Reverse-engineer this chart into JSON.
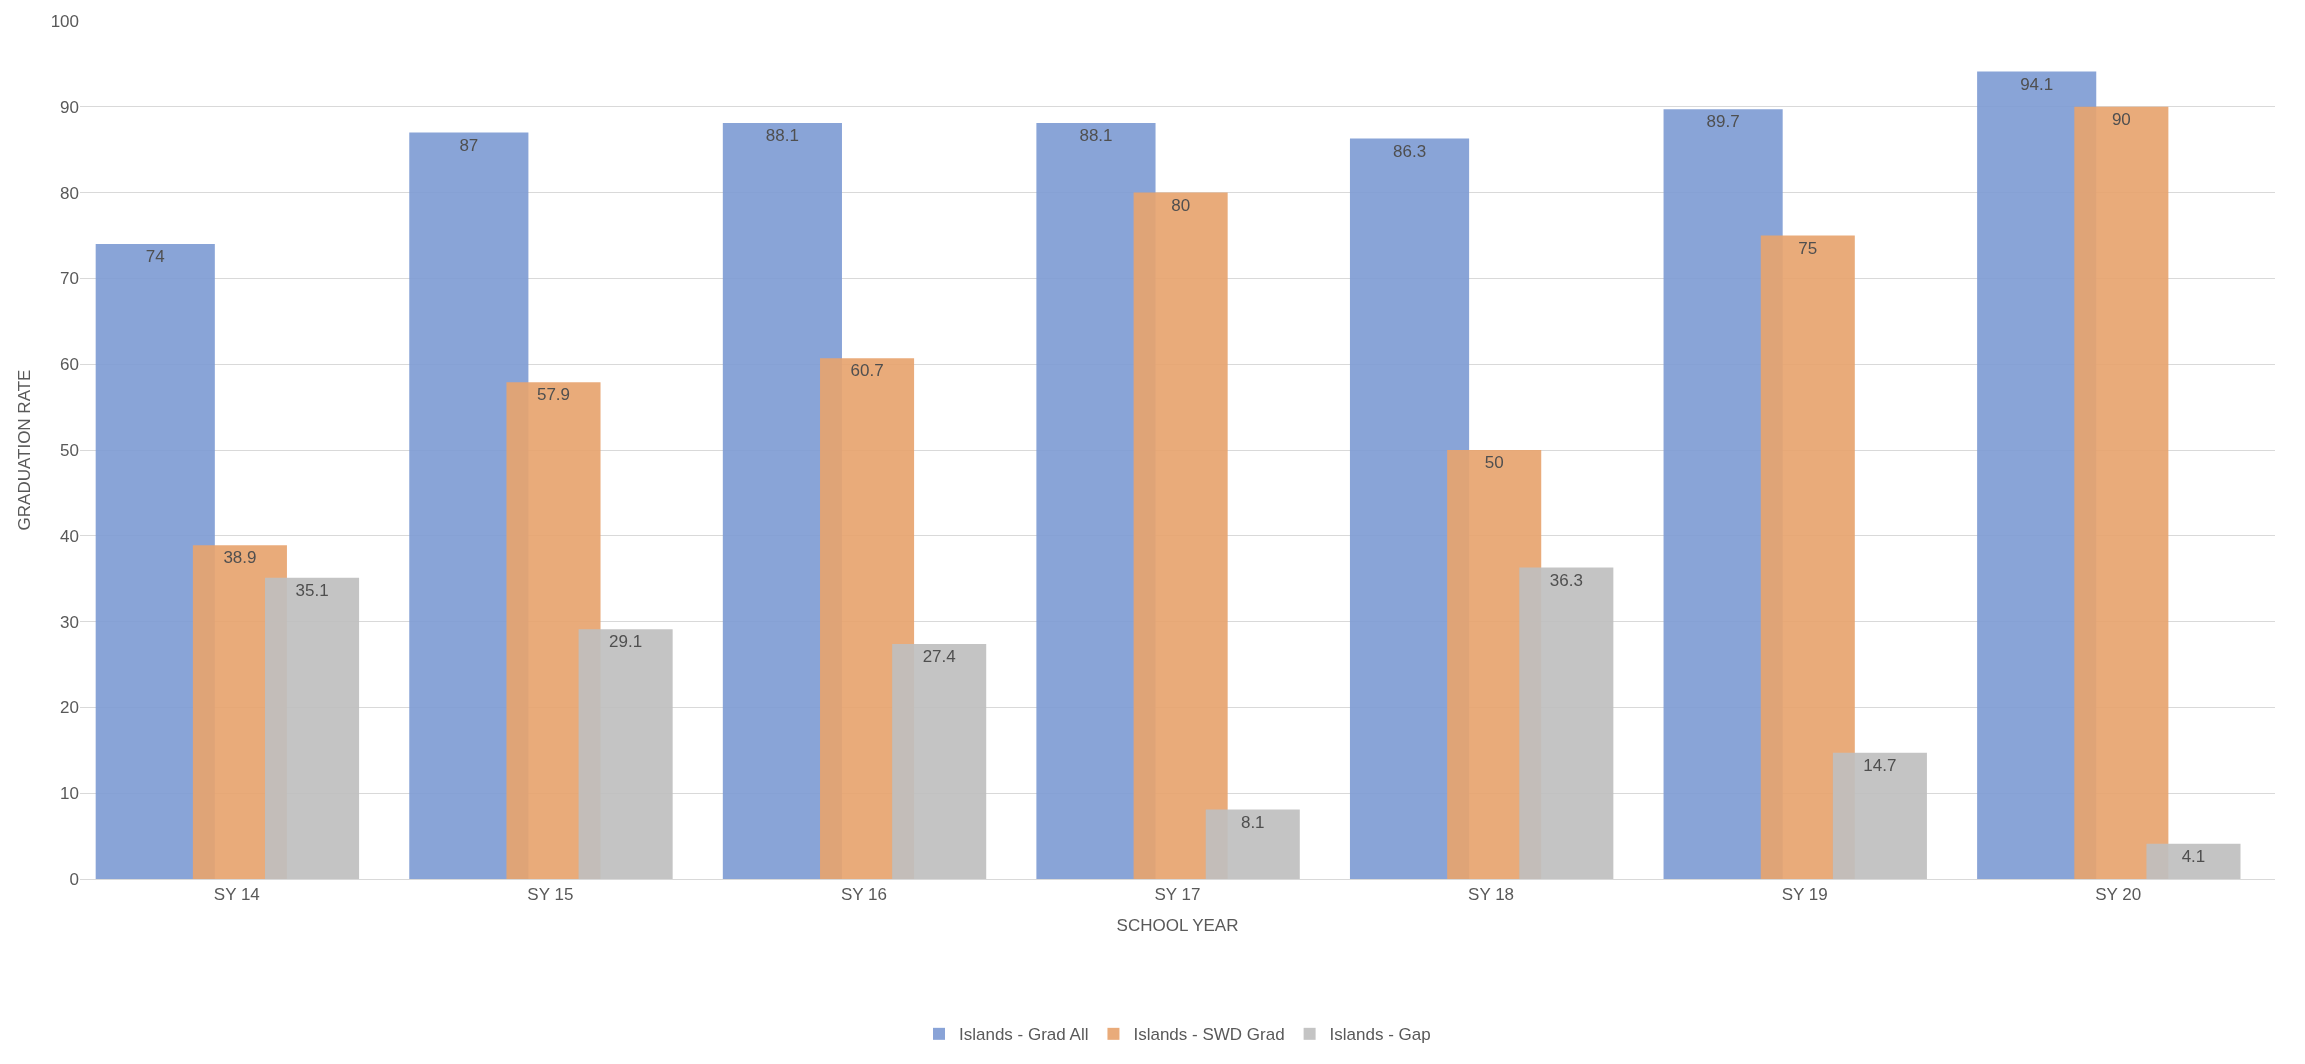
{
  "chart_data": {
    "type": "bar",
    "xlabel": "SCHOOL YEAR",
    "ylabel": "GRADUATION RATE",
    "categories": [
      "SY 14",
      "SY 15",
      "SY 16",
      "SY 17",
      "SY 18",
      "SY 19",
      "SY 20"
    ],
    "series": [
      {
        "name": "Islands - Grad All",
        "color": "#7f9cd4",
        "values": [
          74,
          87,
          88.1,
          88.1,
          86.3,
          89.7,
          94.1
        ]
      },
      {
        "name": "Islands - SWD Grad",
        "color": "#e8a46f",
        "values": [
          38.9,
          57.9,
          60.7,
          80,
          50,
          75,
          90
        ]
      },
      {
        "name": "Islands - Gap",
        "color": "#bfbfbf",
        "values": [
          35.1,
          29.1,
          27.4,
          8.1,
          36.3,
          14.7,
          4.1
        ]
      }
    ],
    "ylim": [
      0,
      100
    ],
    "yticks": [
      0,
      10,
      20,
      30,
      40,
      50,
      60,
      70,
      80,
      90,
      100
    ],
    "grid": "y",
    "legend": "bottom",
    "data_labels": true
  }
}
